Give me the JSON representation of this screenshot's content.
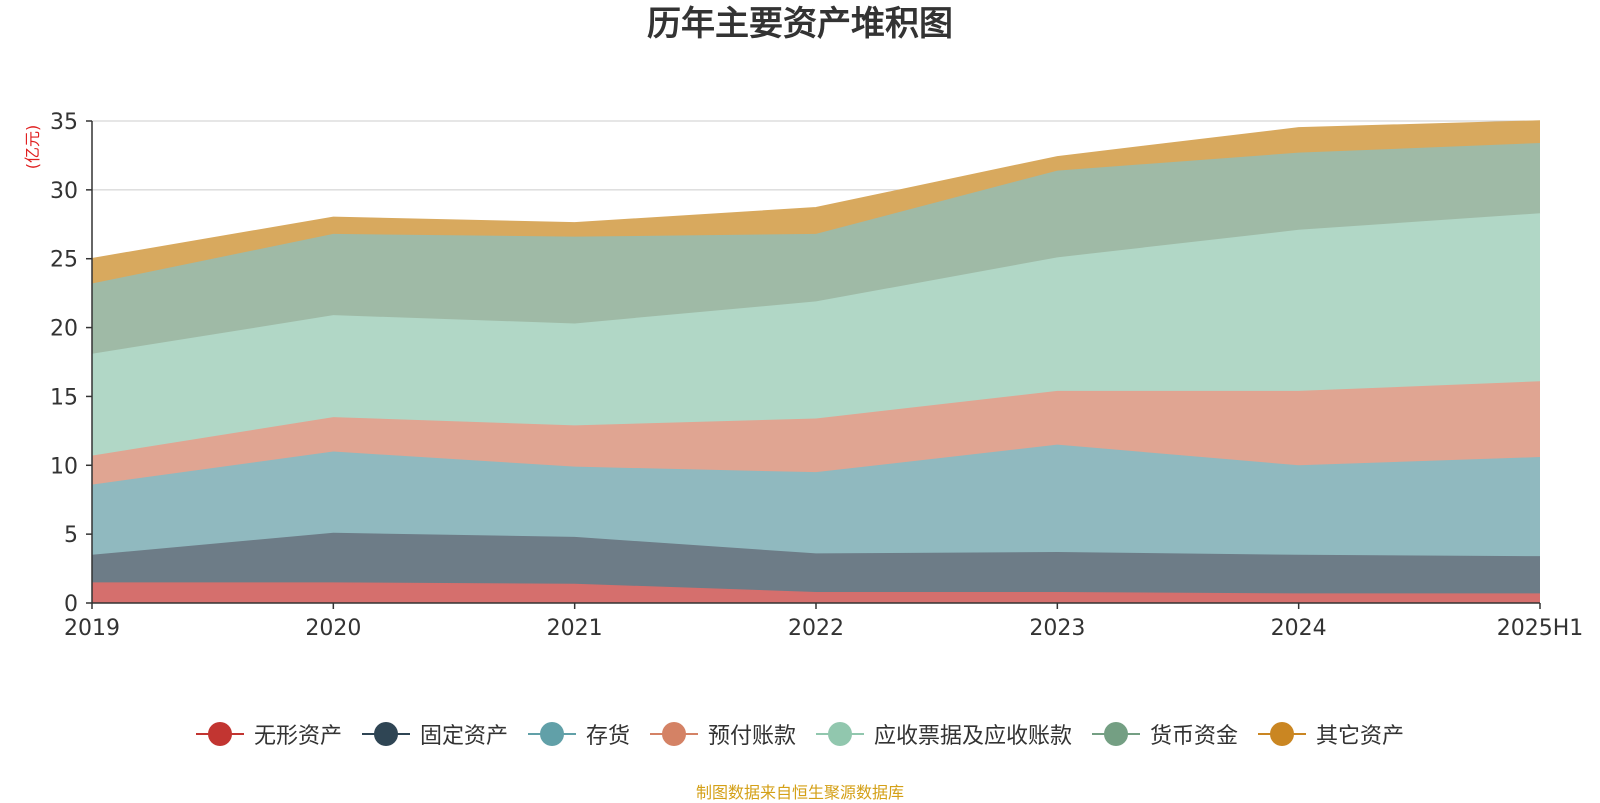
{
  "chart_data": {
    "type": "area",
    "stacked": true,
    "title": "历年主要资产堆积图",
    "ylabel": "(亿元)",
    "xlabel": "",
    "ylim": [
      0,
      35
    ],
    "yticks": [
      0,
      5,
      10,
      15,
      20,
      25,
      30,
      35
    ],
    "categories": [
      "2019",
      "2020",
      "2021",
      "2022",
      "2023",
      "2024",
      "2025H1"
    ],
    "grid": true,
    "legend_position": "bottom",
    "series": [
      {
        "name": "无形资产",
        "color": "#c23531",
        "fill": "#d56f6d",
        "values": [
          1.5,
          1.5,
          1.4,
          0.8,
          0.8,
          0.7,
          0.7
        ]
      },
      {
        "name": "固定资产",
        "color": "#2f4554",
        "fill": "#6d7c87",
        "values": [
          2.0,
          3.6,
          3.4,
          2.8,
          2.9,
          2.8,
          2.7
        ]
      },
      {
        "name": "存货",
        "color": "#61a0a8",
        "fill": "#90b9bf",
        "values": [
          5.1,
          5.9,
          5.1,
          5.9,
          7.8,
          6.5,
          7.2
        ]
      },
      {
        "name": "预付账款",
        "color": "#d48265",
        "fill": "#e0a592",
        "values": [
          2.1,
          2.5,
          3.0,
          3.9,
          3.9,
          5.4,
          5.5
        ]
      },
      {
        "name": "应收票据及应收账款",
        "color": "#91c7ae",
        "fill": "#b1d7c6",
        "values": [
          7.4,
          7.4,
          7.4,
          8.5,
          9.7,
          11.7,
          12.2
        ]
      },
      {
        "name": "货币资金",
        "color": "#749f83",
        "fill": "#9fbaa6",
        "values": [
          5.1,
          5.9,
          6.3,
          4.9,
          6.3,
          5.6,
          5.1
        ]
      },
      {
        "name": "其它资产",
        "color": "#ca8622",
        "fill": "#d8a95e",
        "values": [
          1.8,
          1.2,
          1.0,
          1.9,
          1.0,
          1.8,
          1.6
        ]
      }
    ]
  },
  "footer": "制图数据来自恒生聚源数据库"
}
